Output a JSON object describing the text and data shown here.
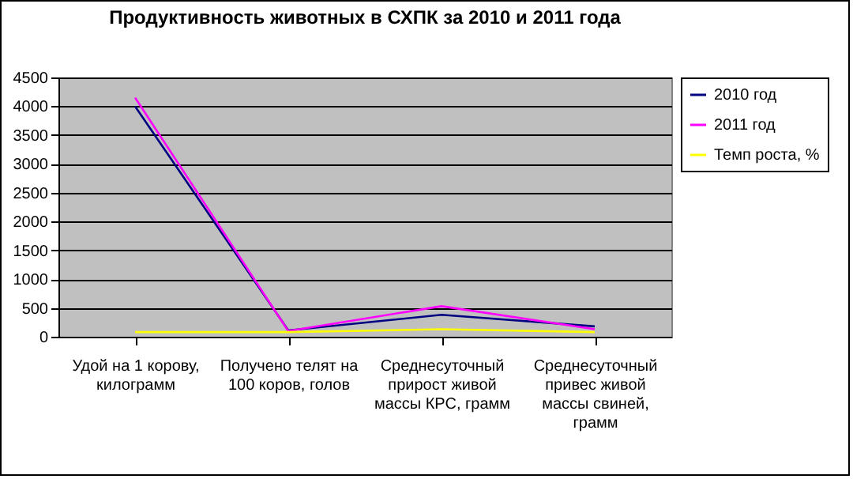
{
  "chart_data": {
    "type": "line",
    "title": "Продуктивность животных в СХПК за 2010 и 2011 года",
    "categories": [
      "Удой на 1 корову, килограмм",
      "Получено телят на 100 коров, голов",
      "Среднесуточный прирост живой массы КРС, грамм",
      "Среднесуточный привес живой массы свиней, грамм"
    ],
    "series": [
      {
        "name": "2010 год",
        "color": "#000080",
        "values": [
          4000,
          110,
          380,
          180
        ]
      },
      {
        "name": "2011 год",
        "color": "#ff00ff",
        "values": [
          4150,
          100,
          530,
          130
        ]
      },
      {
        "name": "Темп роста, %",
        "color": "#ffff00",
        "values": [
          80,
          80,
          130,
          80
        ]
      }
    ],
    "ylim": [
      0,
      4500
    ],
    "yticks": [
      0,
      500,
      1000,
      1500,
      2000,
      2500,
      3000,
      3500,
      4000,
      4500
    ],
    "grid": "y",
    "legend": "right",
    "marker": "none"
  }
}
